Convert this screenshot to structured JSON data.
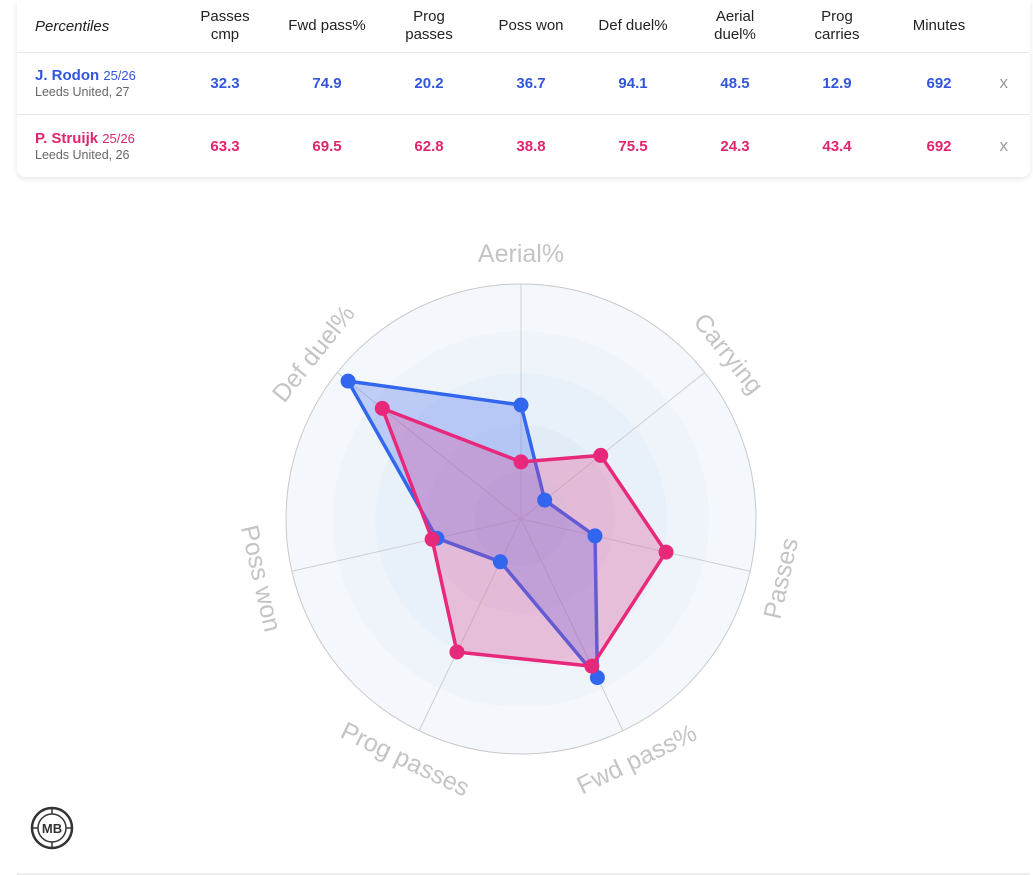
{
  "table": {
    "header_label": "Percentiles",
    "columns": [
      "Passes\ncmp",
      "Fwd pass%",
      "Prog\npasses",
      "Poss won",
      "Def duel%",
      "Aerial\nduel%",
      "Prog\ncarries",
      "Minutes"
    ],
    "players": [
      {
        "name": "J. Rodon",
        "season": "25/26",
        "team_age": "Leeds United, 27",
        "values": [
          "32.3",
          "74.9",
          "20.2",
          "36.7",
          "94.1",
          "48.5",
          "12.9",
          "692"
        ],
        "remove_label": "x",
        "color": "#3355dd"
      },
      {
        "name": "P. Struijk",
        "season": "25/26",
        "team_age": "Leeds United, 26",
        "values": [
          "63.3",
          "69.5",
          "62.8",
          "38.8",
          "75.5",
          "24.3",
          "43.4",
          "692"
        ],
        "remove_label": "x",
        "color": "#e0246e"
      }
    ]
  },
  "chart_data": {
    "type": "radar",
    "axes": [
      "Aerial%",
      "Carrying",
      "Passes",
      "Fwd pass%",
      "Prog passes",
      "Poss won",
      "Def duel%"
    ],
    "range": [
      0,
      100
    ],
    "series": [
      {
        "name": "J. Rodon",
        "color": "#3366ee",
        "values": [
          48.5,
          12.9,
          32.3,
          74.9,
          20.2,
          36.7,
          94.1
        ]
      },
      {
        "name": "P. Struijk",
        "color": "#e8287a",
        "values": [
          24.3,
          43.4,
          63.3,
          69.5,
          62.8,
          38.8,
          75.5
        ]
      }
    ],
    "grid": true
  },
  "logo": {
    "text": "MB",
    "icon": "mb-logo-icon"
  }
}
